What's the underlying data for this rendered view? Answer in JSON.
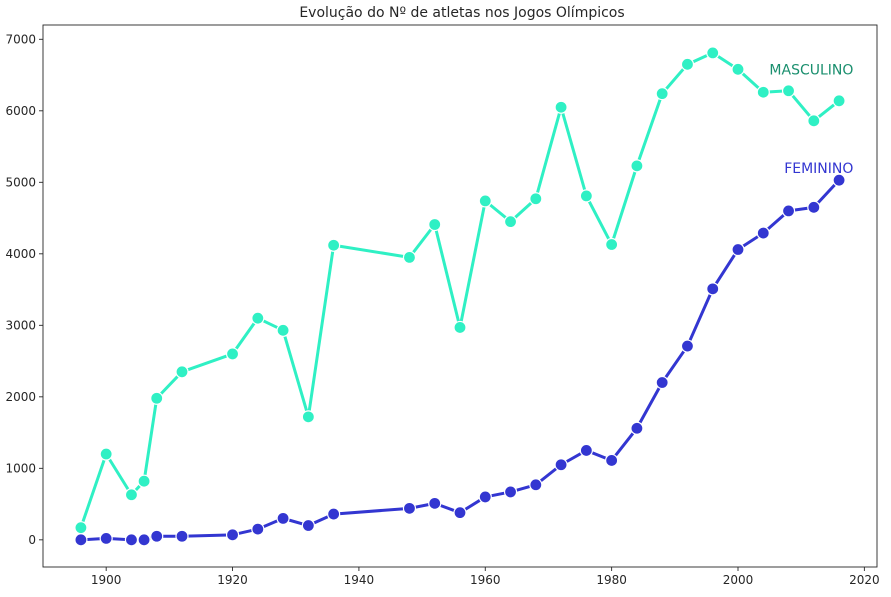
{
  "chart_data": {
    "type": "line",
    "title": "Evolução do Nº de atletas nos Jogos Olímpicos",
    "xlabel": "",
    "ylabel": "",
    "xlim": [
      1890,
      2022
    ],
    "ylim": [
      -380,
      7200
    ],
    "xticks": [
      1900,
      1920,
      1940,
      1960,
      1980,
      2000,
      2020
    ],
    "yticks": [
      0,
      1000,
      2000,
      3000,
      4000,
      5000,
      6000,
      7000
    ],
    "grid": false,
    "legend": "none",
    "series": [
      {
        "name": "MASCULINO",
        "color": "#2ff0c4",
        "x": [
          1896,
          1900,
          1904,
          1906,
          1908,
          1912,
          1920,
          1924,
          1928,
          1932,
          1936,
          1948,
          1952,
          1956,
          1960,
          1964,
          1968,
          1972,
          1976,
          1980,
          1984,
          1988,
          1992,
          1996,
          2000,
          2004,
          2008,
          2012,
          2016
        ],
        "y": [
          170,
          1200,
          630,
          820,
          1980,
          2350,
          2600,
          3100,
          2930,
          1720,
          4120,
          3950,
          4410,
          2970,
          4740,
          4450,
          4770,
          6050,
          4810,
          4130,
          5230,
          6240,
          6650,
          6810,
          6580,
          6260,
          6280,
          5860,
          6140
        ]
      },
      {
        "name": "FEMININO",
        "color": "#3336d1",
        "x": [
          1896,
          1900,
          1904,
          1906,
          1908,
          1912,
          1920,
          1924,
          1928,
          1932,
          1936,
          1948,
          1952,
          1956,
          1960,
          1964,
          1968,
          1972,
          1976,
          1980,
          1984,
          1988,
          1992,
          1996,
          2000,
          2004,
          2008,
          2012,
          2016
        ],
        "y": [
          0,
          20,
          0,
          0,
          50,
          50,
          70,
          150,
          300,
          200,
          360,
          440,
          510,
          380,
          600,
          670,
          770,
          1050,
          1250,
          1110,
          1560,
          2200,
          2710,
          3510,
          4060,
          4290,
          4600,
          4650,
          5030
        ]
      }
    ],
    "annotations": [
      {
        "text": "MASCULINO",
        "x": 2017,
        "y": 6580,
        "color": "#1a8f6e"
      },
      {
        "text": "FEMININO",
        "x": 2017,
        "y": 5200,
        "color": "#3336d1"
      }
    ]
  }
}
